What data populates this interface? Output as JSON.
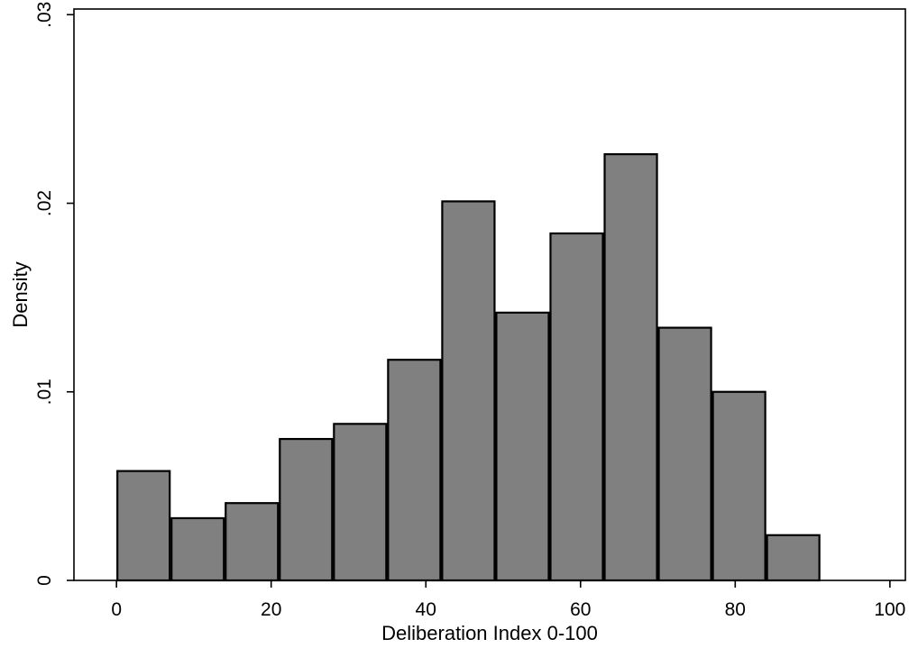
{
  "chart_data": {
    "type": "bar",
    "title": "",
    "xlabel": "Deliberation Index 0-100",
    "ylabel": "Density",
    "xlim": [
      -5.5,
      102
    ],
    "ylim": [
      0,
      0.0303
    ],
    "x_ticks": [
      0,
      20,
      40,
      60,
      80,
      100
    ],
    "x_tick_labels": [
      "0",
      "20",
      "40",
      "60",
      "80",
      "100"
    ],
    "y_ticks": [
      0,
      0.01,
      0.02,
      0.03
    ],
    "y_tick_labels": [
      "0",
      ".01",
      ".02",
      ".03"
    ],
    "grid": false,
    "legend": "none",
    "bin_edges": [
      0,
      7,
      14,
      21,
      28,
      35,
      42,
      49,
      56,
      63,
      70,
      77,
      84,
      91
    ],
    "values": [
      0.0058,
      0.0033,
      0.0041,
      0.0075,
      0.0083,
      0.0117,
      0.0201,
      0.0142,
      0.0184,
      0.0226,
      0.0134,
      0.01,
      0.0024
    ],
    "bar_color": "#808080",
    "bar_edge_color": "#000000"
  }
}
